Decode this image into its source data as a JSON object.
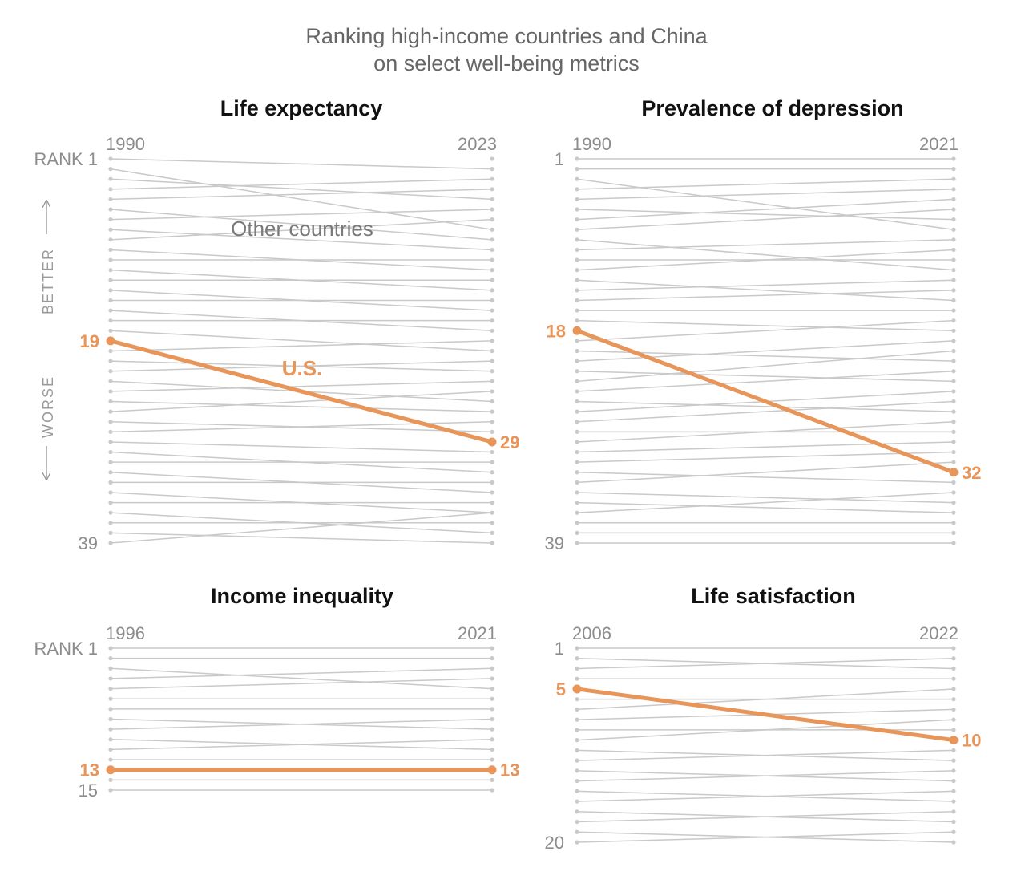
{
  "title_lines": [
    "Ranking high-income countries and China",
    "on select well-being metrics"
  ],
  "colors": {
    "us": "#e8955a",
    "other": "#c9c9c9",
    "text": "#8c8c8c"
  },
  "direction_labels": {
    "better": "BETTER",
    "worse": "WORSE"
  },
  "chart_data": [
    {
      "type": "line",
      "title": "Life expectancy",
      "x": [
        "1990",
        "2023"
      ],
      "n_ranks": 39,
      "y_tick_labels": {
        "top": "RANK 1",
        "bottom": "39"
      },
      "annotations": {
        "other": "Other countries",
        "us": "U.S."
      },
      "series": [
        {
          "name": "U.S.",
          "values": [
            19,
            29
          ],
          "labels": [
            "19",
            "29"
          ]
        }
      ],
      "others": [
        [
          1,
          2
        ],
        [
          2,
          8
        ],
        [
          3,
          5
        ],
        [
          4,
          3
        ],
        [
          5,
          4
        ],
        [
          6,
          9
        ],
        [
          7,
          6
        ],
        [
          8,
          10
        ],
        [
          9,
          7
        ],
        [
          10,
          12
        ],
        [
          11,
          11
        ],
        [
          12,
          14
        ],
        [
          13,
          13
        ],
        [
          14,
          16
        ],
        [
          15,
          15
        ],
        [
          16,
          18
        ],
        [
          17,
          17
        ],
        [
          18,
          20
        ],
        [
          20,
          19
        ],
        [
          21,
          22
        ],
        [
          22,
          21
        ],
        [
          23,
          25
        ],
        [
          24,
          23
        ],
        [
          25,
          26
        ],
        [
          26,
          24
        ],
        [
          27,
          28
        ],
        [
          28,
          27
        ],
        [
          29,
          30
        ],
        [
          30,
          32
        ],
        [
          31,
          31
        ],
        [
          32,
          34
        ],
        [
          33,
          33
        ],
        [
          34,
          36
        ],
        [
          35,
          35
        ],
        [
          36,
          38
        ],
        [
          37,
          37
        ],
        [
          38,
          39
        ],
        [
          39,
          36
        ]
      ]
    },
    {
      "type": "line",
      "title": "Prevalence of depression",
      "x": [
        "1990",
        "2021"
      ],
      "n_ranks": 39,
      "y_tick_labels": {
        "top": "1",
        "bottom": "39"
      },
      "series": [
        {
          "name": "U.S.",
          "values": [
            18,
            32
          ],
          "labels": [
            "18",
            "32"
          ]
        }
      ],
      "others": [
        [
          1,
          1
        ],
        [
          2,
          2
        ],
        [
          3,
          8
        ],
        [
          4,
          3
        ],
        [
          5,
          4
        ],
        [
          6,
          7
        ],
        [
          7,
          5
        ],
        [
          8,
          6
        ],
        [
          9,
          12
        ],
        [
          10,
          9
        ],
        [
          11,
          11
        ],
        [
          12,
          10
        ],
        [
          13,
          15
        ],
        [
          14,
          13
        ],
        [
          15,
          14
        ],
        [
          16,
          16
        ],
        [
          17,
          18
        ],
        [
          19,
          17
        ],
        [
          20,
          21
        ],
        [
          21,
          19
        ],
        [
          22,
          23
        ],
        [
          23,
          20
        ],
        [
          24,
          22
        ],
        [
          25,
          26
        ],
        [
          26,
          24
        ],
        [
          27,
          25
        ],
        [
          28,
          28
        ],
        [
          29,
          27
        ],
        [
          30,
          29
        ],
        [
          31,
          30
        ],
        [
          32,
          33
        ],
        [
          33,
          31
        ],
        [
          34,
          35
        ],
        [
          35,
          36
        ],
        [
          36,
          34
        ],
        [
          37,
          37
        ],
        [
          38,
          38
        ],
        [
          39,
          39
        ]
      ]
    },
    {
      "type": "line",
      "title": "Income inequality",
      "x": [
        "1996",
        "2021"
      ],
      "n_ranks": 15,
      "y_tick_labels": {
        "top": "RANK 1",
        "bottom": "15"
      },
      "series": [
        {
          "name": "U.S.",
          "values": [
            13,
            13
          ],
          "labels": [
            "13",
            "13"
          ]
        }
      ],
      "others": [
        [
          1,
          1
        ],
        [
          2,
          2
        ],
        [
          3,
          5
        ],
        [
          4,
          3
        ],
        [
          5,
          4
        ],
        [
          6,
          6
        ],
        [
          7,
          7
        ],
        [
          8,
          9
        ],
        [
          9,
          8
        ],
        [
          10,
          11
        ],
        [
          11,
          10
        ],
        [
          12,
          12
        ],
        [
          14,
          14
        ],
        [
          15,
          15
        ]
      ]
    },
    {
      "type": "line",
      "title": "Life satisfaction",
      "x": [
        "2006",
        "2022"
      ],
      "n_ranks": 20,
      "y_tick_labels": {
        "top": "1",
        "bottom": "20"
      },
      "series": [
        {
          "name": "U.S.",
          "values": [
            5,
            10
          ],
          "labels": [
            "5",
            "10"
          ]
        }
      ],
      "others": [
        [
          1,
          1
        ],
        [
          2,
          3
        ],
        [
          3,
          2
        ],
        [
          4,
          4
        ],
        [
          6,
          6
        ],
        [
          7,
          5
        ],
        [
          8,
          7
        ],
        [
          9,
          9
        ],
        [
          10,
          8
        ],
        [
          11,
          12
        ],
        [
          12,
          11
        ],
        [
          13,
          14
        ],
        [
          14,
          13
        ],
        [
          15,
          16
        ],
        [
          16,
          15
        ],
        [
          17,
          18
        ],
        [
          18,
          17
        ],
        [
          19,
          20
        ],
        [
          20,
          19
        ]
      ]
    }
  ]
}
